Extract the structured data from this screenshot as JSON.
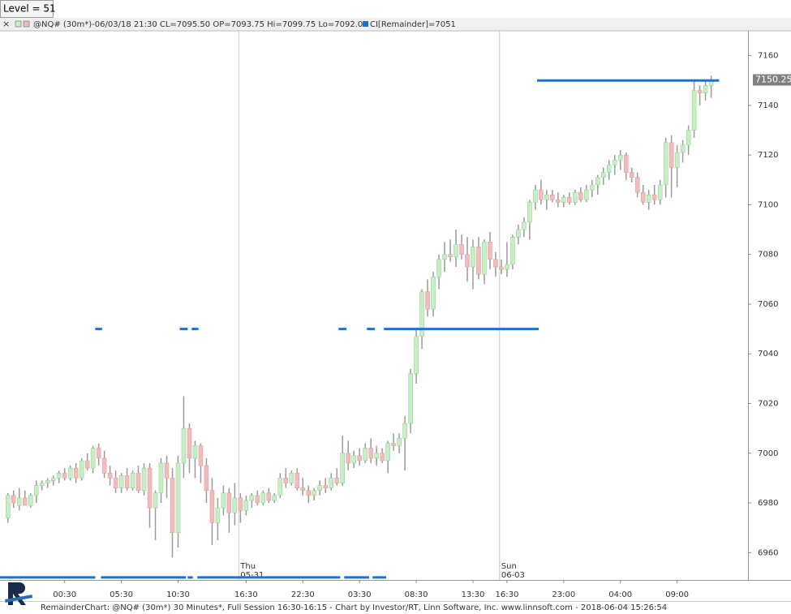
{
  "chart_data": {
    "type": "candlestick",
    "level_label": "Level = 51",
    "header": "@NQ# (30m*)-06/03/18 21:30 CL=7095.50 OP=7093.75 Hi=7099.75 Lo=7092.00",
    "indicator_label": "CI[Remainder]=7051",
    "footer": "RemainderChart: @NQ# (30m*) 30 Minutes*, Full Session 16:30-16:15 - Chart by Investor/RT, Linn Software, Inc. www.linnsoft.com - 2018-06-04 15:26:54",
    "up_color": "#c6efc6",
    "down_color": "#f2bcbc",
    "wick_color": "#9a9a9a",
    "level_color": "#1a73d0",
    "ylim": [
      6949,
      7170
    ],
    "yticks": [
      6960,
      6980,
      7000,
      7020,
      7040,
      7060,
      7080,
      7100,
      7120,
      7140,
      7160
    ],
    "xlim": [
      -1.4,
      130.5
    ],
    "xticks": [
      {
        "value": 10,
        "label": "00:30"
      },
      {
        "value": 20,
        "label": "05:30"
      },
      {
        "value": 30,
        "label": "10:30"
      },
      {
        "value": 42,
        "label": "16:30"
      },
      {
        "value": 52,
        "label": "22:30"
      },
      {
        "value": 62,
        "label": "03:30"
      },
      {
        "value": 72,
        "label": "08:30"
      },
      {
        "value": 82,
        "label": "13:30"
      },
      {
        "value": 88,
        "label": "16:30"
      },
      {
        "value": 98,
        "label": "23:00"
      },
      {
        "value": 108,
        "label": "04:00"
      },
      {
        "value": 118,
        "label": "09:00"
      }
    ],
    "day_markers": [
      {
        "value": 40.7,
        "day": "Thu",
        "date": "05-31"
      },
      {
        "value": 86.7,
        "day": "Sun",
        "date": "06-03"
      }
    ],
    "last_price": 7150.25,
    "values": [
      [
        6974,
        6984,
        6972,
        6983
      ],
      [
        6983,
        6985,
        6978,
        6980
      ],
      [
        6979,
        6986,
        6977,
        6982
      ],
      [
        6982,
        6985,
        6979,
        6979
      ],
      [
        6979,
        6984,
        6978,
        6983
      ],
      [
        6983,
        6989,
        6980,
        6987
      ],
      [
        6987,
        6989,
        6985,
        6988
      ],
      [
        6988,
        6990,
        6986,
        6989
      ],
      [
        6989,
        6991,
        6987,
        6990
      ],
      [
        6990,
        6993,
        6988,
        6992
      ],
      [
        6992,
        6994,
        6989,
        6990
      ],
      [
        6990,
        6995,
        6989,
        6994
      ],
      [
        6994,
        6996,
        6988,
        6990
      ],
      [
        6990,
        6998,
        6989,
        6997
      ],
      [
        6997,
        7000,
        6993,
        6994
      ],
      [
        6994,
        7003,
        6992,
        7002
      ],
      [
        7002,
        7004,
        6995,
        6998
      ],
      [
        6998,
        7001,
        6990,
        6992
      ],
      [
        6992,
        6995,
        6987,
        6990
      ],
      [
        6990,
        6993,
        6984,
        6986
      ],
      [
        6986,
        6992,
        6984,
        6991
      ],
      [
        6991,
        6994,
        6985,
        6986
      ],
      [
        6986,
        6993,
        6985,
        6992
      ],
      [
        6992,
        6995,
        6984,
        6985
      ],
      [
        6985,
        6996,
        6983,
        6994
      ],
      [
        6994,
        6996,
        6970,
        6978
      ],
      [
        6978,
        6985,
        6965,
        6984
      ],
      [
        6984,
        6998,
        6980,
        6996
      ],
      [
        6996,
        6999,
        6982,
        6990
      ],
      [
        6990,
        6994,
        6958,
        6968
      ],
      [
        6968,
        6999,
        6962,
        6996
      ],
      [
        6996,
        7023,
        6990,
        7010
      ],
      [
        7010,
        7012,
        6992,
        6998
      ],
      [
        6998,
        7005,
        6990,
        7003
      ],
      [
        7003,
        7004,
        6988,
        6995
      ],
      [
        6995,
        6998,
        6980,
        6985
      ],
      [
        6985,
        6990,
        6963,
        6972
      ],
      [
        6972,
        6982,
        6965,
        6978
      ],
      [
        6978,
        6987,
        6975,
        6984
      ],
      [
        6984,
        6986,
        6968,
        6976
      ],
      [
        6976,
        6988,
        6971,
        6982
      ],
      [
        6982,
        6984,
        6972,
        6977
      ],
      [
        6977,
        6983,
        6975,
        6981
      ],
      [
        6981,
        6984,
        6978,
        6983
      ],
      [
        6983,
        6985,
        6979,
        6980
      ],
      [
        6980,
        6985,
        6979,
        6984
      ],
      [
        6984,
        6986,
        6980,
        6981
      ],
      [
        6981,
        6984,
        6980,
        6983
      ],
      [
        6983,
        6992,
        6982,
        6990
      ],
      [
        6990,
        6994,
        6986,
        6988
      ],
      [
        6988,
        6993,
        6987,
        6992
      ],
      [
        6992,
        6994,
        6985,
        6986
      ],
      [
        6986,
        6990,
        6983,
        6985
      ],
      [
        6985,
        6987,
        6980,
        6983
      ],
      [
        6983,
        6986,
        6981,
        6985
      ],
      [
        6985,
        6989,
        6983,
        6987
      ],
      [
        6987,
        6990,
        6984,
        6986
      ],
      [
        6986,
        6992,
        6985,
        6990
      ],
      [
        6990,
        6994,
        6987,
        6988
      ],
      [
        6988,
        7007,
        6987,
        7000
      ],
      [
        7000,
        7005,
        6993,
        6996
      ],
      [
        6996,
        7001,
        6994,
        6999
      ],
      [
        6999,
        7002,
        6995,
        6997
      ],
      [
        6997,
        7004,
        6996,
        7002
      ],
      [
        7002,
        7006,
        6996,
        6998
      ],
      [
        6998,
        7003,
        6995,
        7000
      ],
      [
        7000,
        7002,
        6996,
        6997
      ],
      [
        6997,
        7005,
        6992,
        7004
      ],
      [
        7004,
        7008,
        7001,
        7003
      ],
      [
        7003,
        7008,
        7000,
        7006
      ],
      [
        7006,
        7015,
        6993,
        7012
      ],
      [
        7012,
        7034,
        7008,
        7032
      ],
      [
        7032,
        7050,
        7028,
        7047
      ],
      [
        7047,
        7066,
        7042,
        7065
      ],
      [
        7065,
        7070,
        7055,
        7058
      ],
      [
        7058,
        7073,
        7055,
        7071
      ],
      [
        7071,
        7080,
        7066,
        7078
      ],
      [
        7078,
        7085,
        7073,
        7080
      ],
      [
        7080,
        7086,
        7077,
        7079
      ],
      [
        7079,
        7090,
        7075,
        7084
      ],
      [
        7084,
        7088,
        7078,
        7080
      ],
      [
        7080,
        7087,
        7069,
        7075
      ],
      [
        7075,
        7086,
        7066,
        7083
      ],
      [
        7083,
        7087,
        7070,
        7072
      ],
      [
        7072,
        7086,
        7068,
        7085
      ],
      [
        7085,
        7089,
        7074,
        7078
      ],
      [
        7078,
        7081,
        7071,
        7075
      ],
      [
        7075,
        7078,
        7072,
        7074
      ],
      [
        7074,
        7085,
        7071,
        7076
      ],
      [
        7076,
        7088,
        7074,
        7087
      ],
      [
        7087,
        7092,
        7084,
        7090
      ],
      [
        7090,
        7095,
        7087,
        7093
      ],
      [
        7093,
        7102,
        7086,
        7101
      ],
      [
        7101,
        7108,
        7098,
        7106
      ],
      [
        7106,
        7110,
        7100,
        7102
      ],
      [
        7102,
        7106,
        7098,
        7104
      ],
      [
        7104,
        7106,
        7101,
        7102
      ],
      [
        7102,
        7105,
        7099,
        7101
      ],
      [
        7101,
        7104,
        7099,
        7103
      ],
      [
        7103,
        7105,
        7100,
        7101
      ],
      [
        7101,
        7106,
        7100,
        7105
      ],
      [
        7105,
        7107,
        7101,
        7102
      ],
      [
        7102,
        7108,
        7101,
        7106
      ],
      [
        7106,
        7110,
        7103,
        7108
      ],
      [
        7108,
        7112,
        7104,
        7111
      ],
      [
        7111,
        7115,
        7108,
        7113
      ],
      [
        7113,
        7118,
        7110,
        7116
      ],
      [
        7116,
        7120,
        7112,
        7118
      ],
      [
        7118,
        7122,
        7114,
        7120
      ],
      [
        7120,
        7121,
        7110,
        7113
      ],
      [
        7113,
        7115,
        7109,
        7111
      ],
      [
        7111,
        7113,
        7103,
        7105
      ],
      [
        7105,
        7108,
        7100,
        7101
      ],
      [
        7101,
        7106,
        7098,
        7104
      ],
      [
        7104,
        7108,
        7100,
        7102
      ],
      [
        7102,
        7110,
        7100,
        7108
      ],
      [
        7108,
        7127,
        7103,
        7125
      ],
      [
        7125,
        7128,
        7103,
        7115
      ],
      [
        7115,
        7124,
        7107,
        7121
      ],
      [
        7121,
        7126,
        7117,
        7124
      ],
      [
        7124,
        7132,
        7120,
        7130
      ],
      [
        7130,
        7150,
        7127,
        7146
      ],
      [
        7146,
        7148,
        7140,
        7145
      ],
      [
        7145,
        7150,
        7142,
        7148
      ],
      [
        7148,
        7152,
        7143,
        7150.25
      ]
    ],
    "levels": [
      {
        "price": 7150,
        "from": 93.3,
        "to": 125.4
      },
      {
        "price": 7050,
        "from": 66.3,
        "to": 93.6
      },
      {
        "price": 7050,
        "from": 15.4,
        "to": 16.6
      },
      {
        "price": 7050,
        "from": 30.3,
        "to": 31.7
      },
      {
        "price": 7050,
        "from": 32.4,
        "to": 33.6
      },
      {
        "price": 7050,
        "from": 58.3,
        "to": 59.7
      },
      {
        "price": 7050,
        "from": 63.3,
        "to": 64.7
      },
      {
        "price": 6950,
        "from": -1.4,
        "to": 15.4
      },
      {
        "price": 6950,
        "from": 16.4,
        "to": 31.4
      },
      {
        "price": 6950,
        "from": 31.7,
        "to": 32.6
      },
      {
        "price": 6950,
        "from": 33.4,
        "to": 58.6
      },
      {
        "price": 6950,
        "from": 59.3,
        "to": 63.7
      },
      {
        "price": 6950,
        "from": 64.3,
        "to": 66.7
      }
    ]
  }
}
